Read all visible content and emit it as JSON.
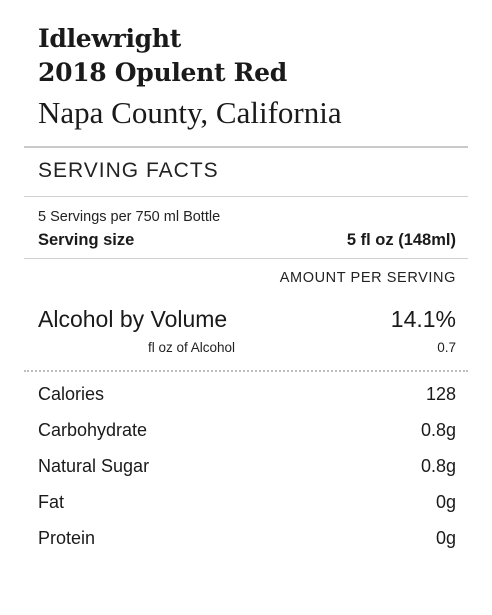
{
  "header": {
    "winery": "Idlewright",
    "wine": "2018 Opulent Red",
    "region": "Napa County, California"
  },
  "serving_facts": {
    "section_title": "SERVING FACTS",
    "servings_per_container": "5 Servings per 750 ml Bottle",
    "serving_size_label": "Serving size",
    "serving_size_value": "5 fl oz (148ml)",
    "amount_per_serving": "AMOUNT PER SERVING"
  },
  "alcohol": {
    "label": "Alcohol by Volume",
    "value": "14.1%",
    "sub_label": "fl oz of Alcohol",
    "sub_value": "0.7"
  },
  "nutrients": [
    {
      "name": "Calories",
      "value": "128"
    },
    {
      "name": "Carbohydrate",
      "value": "0.8g"
    },
    {
      "name": "Natural Sugar",
      "value": "0.8g"
    },
    {
      "name": "Fat",
      "value": "0g"
    },
    {
      "name": "Protein",
      "value": "0g"
    }
  ]
}
